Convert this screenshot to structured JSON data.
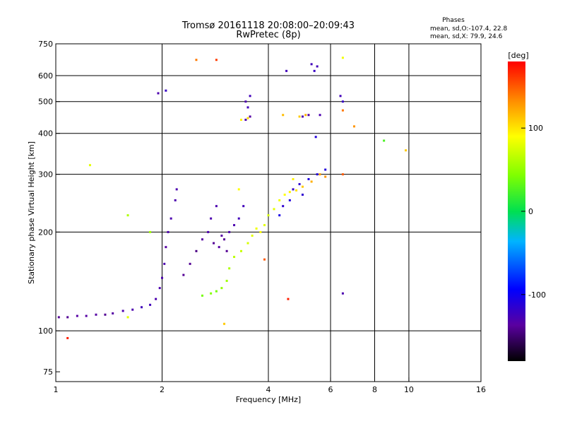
{
  "chart_data": {
    "type": "scatter",
    "title": "Tromsø 20161118 20:08:00–20:09:43",
    "subtitle": "RwPretec (8p)",
    "xlabel": "Frequency [MHz]",
    "ylabel": "Stationary phase Virtual Height [km]",
    "x_scale": "log",
    "y_scale": "log",
    "xlim": [
      1,
      16
    ],
    "ylim": [
      70,
      750
    ],
    "x_ticks": [
      1,
      2,
      4,
      6,
      8,
      10,
      16
    ],
    "x_tick_labels": [
      "1",
      "2",
      "4",
      "6",
      "8",
      "10",
      "16"
    ],
    "y_ticks": [
      75,
      100,
      200,
      300,
      400,
      500,
      600,
      750
    ],
    "y_tick_labels": [
      "75",
      "100",
      "200",
      "300",
      "400",
      "500",
      "600",
      "750"
    ],
    "x_gridlines": [
      2,
      4,
      6,
      8,
      10
    ],
    "y_gridlines": [
      100,
      200,
      300,
      400,
      500,
      600
    ],
    "grid": true,
    "legend_title": "Phases",
    "legend_lines": [
      "mean, sd,O:-107.4, 22.8",
      "mean, sd,X:  79.9, 24.6"
    ],
    "colorbar": {
      "label": "[deg]",
      "range": [
        -180,
        180
      ],
      "ticks": [
        100,
        0,
        -100
      ],
      "tick_labels": [
        "100",
        "0",
        "-100"
      ]
    },
    "series": [
      {
        "values": [
          [
            1.02,
            110,
            -140
          ],
          [
            1.08,
            110,
            -140
          ],
          [
            1.15,
            111,
            -135
          ],
          [
            1.22,
            111,
            -135
          ],
          [
            1.3,
            112,
            -135
          ],
          [
            1.38,
            112,
            -140
          ],
          [
            1.45,
            113,
            -135
          ],
          [
            1.55,
            115,
            -130
          ],
          [
            1.65,
            116,
            -130
          ],
          [
            1.75,
            118,
            -125
          ],
          [
            1.85,
            120,
            -125
          ],
          [
            1.92,
            125,
            -130
          ],
          [
            1.97,
            135,
            -130
          ],
          [
            2.0,
            145,
            -130
          ],
          [
            2.03,
            160,
            -130
          ],
          [
            2.05,
            180,
            -135
          ],
          [
            2.08,
            200,
            -130
          ],
          [
            2.12,
            220,
            -130
          ],
          [
            2.18,
            250,
            -130
          ],
          [
            2.2,
            270,
            -130
          ],
          [
            2.3,
            148,
            -140
          ],
          [
            2.4,
            160,
            -140
          ],
          [
            2.5,
            175,
            -145
          ],
          [
            2.6,
            190,
            -135
          ],
          [
            2.7,
            200,
            -130
          ],
          [
            2.8,
            185,
            -140
          ],
          [
            2.9,
            180,
            -135
          ],
          [
            3.0,
            190,
            -140
          ],
          [
            3.1,
            200,
            -130
          ],
          [
            3.2,
            210,
            -130
          ],
          [
            3.3,
            220,
            -125
          ],
          [
            3.4,
            240,
            -125
          ],
          [
            2.75,
            220,
            -130
          ],
          [
            2.85,
            240,
            -130
          ],
          [
            2.95,
            195,
            -135
          ],
          [
            3.05,
            175,
            -140
          ],
          [
            3.45,
            500,
            -130
          ],
          [
            3.5,
            480,
            -125
          ],
          [
            3.55,
            450,
            -135
          ],
          [
            3.45,
            440,
            -130
          ],
          [
            3.55,
            520,
            -125
          ],
          [
            5.3,
            650,
            -125
          ],
          [
            5.4,
            620,
            -120
          ],
          [
            5.5,
            640,
            -125
          ],
          [
            5.0,
            450,
            -130
          ],
          [
            5.2,
            455,
            -135
          ],
          [
            5.6,
            455,
            -130
          ],
          [
            4.7,
            270,
            -120
          ],
          [
            4.9,
            280,
            -115
          ],
          [
            5.2,
            290,
            -110
          ],
          [
            5.5,
            300,
            -110
          ],
          [
            5.8,
            310,
            -110
          ],
          [
            5.0,
            260,
            -115
          ],
          [
            4.6,
            250,
            -110
          ],
          [
            4.4,
            240,
            -115
          ],
          [
            4.3,
            225,
            -105
          ],
          [
            6.5,
            500,
            -120
          ],
          [
            6.5,
            130,
            -130
          ],
          [
            6.4,
            520,
            -125
          ],
          [
            1.95,
            530,
            -130
          ],
          [
            2.05,
            540,
            -120
          ],
          [
            4.5,
            620,
            -125
          ],
          [
            5.45,
            390,
            -110
          ]
        ]
      },
      {
        "values": [
          [
            2.6,
            128,
            40
          ],
          [
            2.75,
            130,
            45
          ],
          [
            2.85,
            132,
            40
          ],
          [
            2.95,
            135,
            50
          ],
          [
            3.05,
            142,
            55
          ],
          [
            3.1,
            155,
            60
          ],
          [
            3.2,
            168,
            65
          ],
          [
            3.35,
            175,
            70
          ],
          [
            3.5,
            185,
            75
          ],
          [
            3.6,
            195,
            80
          ],
          [
            3.7,
            205,
            85
          ],
          [
            3.8,
            200,
            90
          ],
          [
            3.9,
            210,
            80
          ],
          [
            4.0,
            225,
            75
          ],
          [
            4.15,
            235,
            80
          ],
          [
            4.3,
            250,
            85
          ],
          [
            4.45,
            260,
            90
          ],
          [
            4.6,
            265,
            95
          ],
          [
            4.8,
            268,
            100
          ],
          [
            5.0,
            275,
            110
          ],
          [
            5.3,
            285,
            120
          ],
          [
            5.6,
            300,
            125
          ],
          [
            5.8,
            295,
            130
          ],
          [
            4.9,
            450,
            110
          ],
          [
            5.1,
            455,
            120
          ],
          [
            4.4,
            455,
            115
          ],
          [
            6.5,
            470,
            140
          ],
          [
            6.5,
            300,
            150
          ],
          [
            3.35,
            440,
            95
          ],
          [
            3.5,
            445,
            105
          ],
          [
            2.5,
            670,
            140
          ],
          [
            2.85,
            670,
            160
          ],
          [
            6.5,
            680,
            85
          ],
          [
            1.25,
            320,
            80
          ],
          [
            1.08,
            95,
            170
          ],
          [
            3.9,
            165,
            150
          ],
          [
            4.55,
            125,
            170
          ],
          [
            7.0,
            420,
            130
          ],
          [
            9.8,
            355,
            110
          ],
          [
            3.0,
            105,
            110
          ],
          [
            1.6,
            225,
            60
          ],
          [
            1.85,
            200,
            55
          ],
          [
            8.5,
            380,
            25
          ],
          [
            1.6,
            110,
            80
          ],
          [
            4.7,
            290,
            95
          ],
          [
            3.3,
            270,
            90
          ]
        ]
      }
    ]
  }
}
